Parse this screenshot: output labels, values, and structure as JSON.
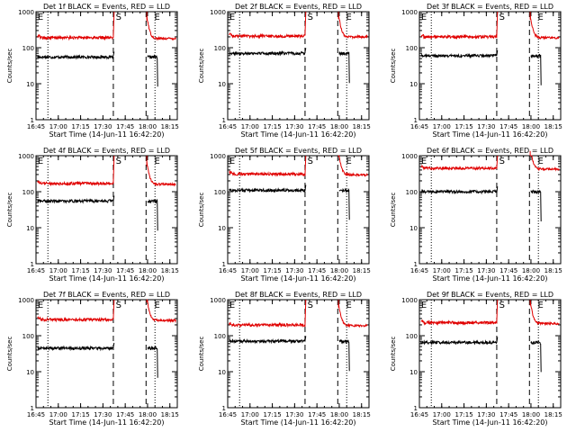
{
  "chart_data": [
    {
      "type": "line",
      "title": "Det 1f BLACK = Events, RED = LLD",
      "xlabel": "Start Time (14-Jun-11 16:42:20)",
      "ylabel": "Counts/sec",
      "yscale": "log",
      "ylim": [
        1,
        1000
      ],
      "xlim": [
        "16:45",
        "18:20"
      ],
      "x_tick_labels": [
        "16:45",
        "17:00",
        "17:15",
        "17:30",
        "17:45",
        "18:00",
        "18:15"
      ],
      "y_tick_labels": [
        "1",
        "10",
        "100",
        "1000"
      ],
      "annotations": [
        "E",
        "S",
        "E"
      ],
      "series": [
        {
          "color": "#000000",
          "level": 55
        },
        {
          "color": "#e00000",
          "level": 190
        }
      ]
    },
    {
      "type": "line",
      "title": "Det 2f BLACK = Events, RED = LLD",
      "xlabel": "Start Time (14-Jun-11 16:42:20)",
      "ylabel": "Counts/sec",
      "yscale": "log",
      "ylim": [
        1,
        1000
      ],
      "xlim": [
        "16:45",
        "18:20"
      ],
      "x_tick_labels": [
        "16:45",
        "17:00",
        "17:15",
        "17:30",
        "17:45",
        "18:00",
        "18:15"
      ],
      "y_tick_labels": [
        "1",
        "10",
        "100",
        "1000"
      ],
      "annotations": [
        "E",
        "S",
        "E"
      ],
      "series": [
        {
          "color": "#000000",
          "level": 70
        },
        {
          "color": "#e00000",
          "level": 210
        }
      ]
    },
    {
      "type": "line",
      "title": "Det 3f BLACK = Events, RED = LLD",
      "xlabel": "Start Time (14-Jun-11 16:42:20)",
      "ylabel": "Counts/sec",
      "yscale": "log",
      "ylim": [
        1,
        1000
      ],
      "xlim": [
        "16:45",
        "18:20"
      ],
      "x_tick_labels": [
        "16:45",
        "17:00",
        "17:15",
        "17:30",
        "17:45",
        "18:00",
        "18:15"
      ],
      "y_tick_labels": [
        "1",
        "10",
        "100",
        "1000"
      ],
      "annotations": [
        "E",
        "S",
        "E"
      ],
      "series": [
        {
          "color": "#000000",
          "level": 60
        },
        {
          "color": "#e00000",
          "level": 200
        }
      ]
    },
    {
      "type": "line",
      "title": "Det 4f BLACK = Events, RED = LLD",
      "xlabel": "Start Time (14-Jun-11 16:42:20)",
      "ylabel": "Counts/sec",
      "yscale": "log",
      "ylim": [
        1,
        1000
      ],
      "xlim": [
        "16:45",
        "18:20"
      ],
      "x_tick_labels": [
        "16:45",
        "17:00",
        "17:15",
        "17:30",
        "17:45",
        "18:00",
        "18:15"
      ],
      "y_tick_labels": [
        "1",
        "10",
        "100",
        "1000"
      ],
      "annotations": [
        "E",
        "S",
        "E"
      ],
      "series": [
        {
          "color": "#000000",
          "level": 55
        },
        {
          "color": "#e00000",
          "level": 170
        }
      ]
    },
    {
      "type": "line",
      "title": "Det 5f BLACK = Events, RED = LLD",
      "xlabel": "Start Time (14-Jun-11 16:42:20)",
      "ylabel": "Counts/sec",
      "yscale": "log",
      "ylim": [
        1,
        1000
      ],
      "xlim": [
        "16:45",
        "18:20"
      ],
      "x_tick_labels": [
        "16:45",
        "17:00",
        "17:15",
        "17:30",
        "17:45",
        "18:00",
        "18:15"
      ],
      "y_tick_labels": [
        "1",
        "10",
        "100",
        "1000"
      ],
      "annotations": [
        "E",
        "S",
        "E"
      ],
      "series": [
        {
          "color": "#000000",
          "level": 110
        },
        {
          "color": "#e00000",
          "level": 310
        }
      ]
    },
    {
      "type": "line",
      "title": "Det 6f BLACK = Events, RED = LLD",
      "xlabel": "Start Time (14-Jun-11 16:42:20)",
      "ylabel": "Counts/sec",
      "yscale": "log",
      "ylim": [
        1,
        1000
      ],
      "xlim": [
        "16:45",
        "18:20"
      ],
      "x_tick_labels": [
        "16:45",
        "17:00",
        "17:15",
        "17:30",
        "17:45",
        "18:00",
        "18:15"
      ],
      "y_tick_labels": [
        "1",
        "10",
        "100",
        "1000"
      ],
      "annotations": [
        "E",
        "S",
        "E"
      ],
      "series": [
        {
          "color": "#000000",
          "level": 100
        },
        {
          "color": "#e00000",
          "level": 450
        }
      ]
    },
    {
      "type": "line",
      "title": "Det 7f BLACK = Events, RED = LLD",
      "xlabel": "Start Time (14-Jun-11 16:42:20)",
      "ylabel": "Counts/sec",
      "yscale": "log",
      "ylim": [
        1,
        1000
      ],
      "xlim": [
        "16:45",
        "18:20"
      ],
      "x_tick_labels": [
        "16:45",
        "17:00",
        "17:15",
        "17:30",
        "17:45",
        "18:00",
        "18:15"
      ],
      "y_tick_labels": [
        "1",
        "10",
        "100",
        "1000"
      ],
      "annotations": [
        "E",
        "S",
        "E"
      ],
      "series": [
        {
          "color": "#000000",
          "level": 45
        },
        {
          "color": "#e00000",
          "level": 280
        }
      ]
    },
    {
      "type": "line",
      "title": "Det 8f BLACK = Events, RED = LLD",
      "xlabel": "Start Time (14-Jun-11 16:42:20)",
      "ylabel": "Counts/sec",
      "yscale": "log",
      "ylim": [
        1,
        1000
      ],
      "xlim": [
        "16:45",
        "18:20"
      ],
      "x_tick_labels": [
        "16:45",
        "17:00",
        "17:15",
        "17:30",
        "17:45",
        "18:00",
        "18:15"
      ],
      "y_tick_labels": [
        "1",
        "10",
        "100",
        "1000"
      ],
      "annotations": [
        "E",
        "S",
        "E"
      ],
      "series": [
        {
          "color": "#000000",
          "level": 70
        },
        {
          "color": "#e00000",
          "level": 200
        }
      ]
    },
    {
      "type": "line",
      "title": "Det 9f BLACK = Events, RED = LLD",
      "xlabel": "Start Time (14-Jun-11 16:42:20)",
      "ylabel": "Counts/sec",
      "yscale": "log",
      "ylim": [
        1,
        1000
      ],
      "xlim": [
        "16:45",
        "18:20"
      ],
      "x_tick_labels": [
        "16:45",
        "17:00",
        "17:15",
        "17:30",
        "17:45",
        "18:00",
        "18:15"
      ],
      "y_tick_labels": [
        "1",
        "10",
        "100",
        "1000"
      ],
      "annotations": [
        "E",
        "S",
        "E"
      ],
      "series": [
        {
          "color": "#000000",
          "level": 65
        },
        {
          "color": "#e00000",
          "level": 230
        }
      ]
    }
  ]
}
